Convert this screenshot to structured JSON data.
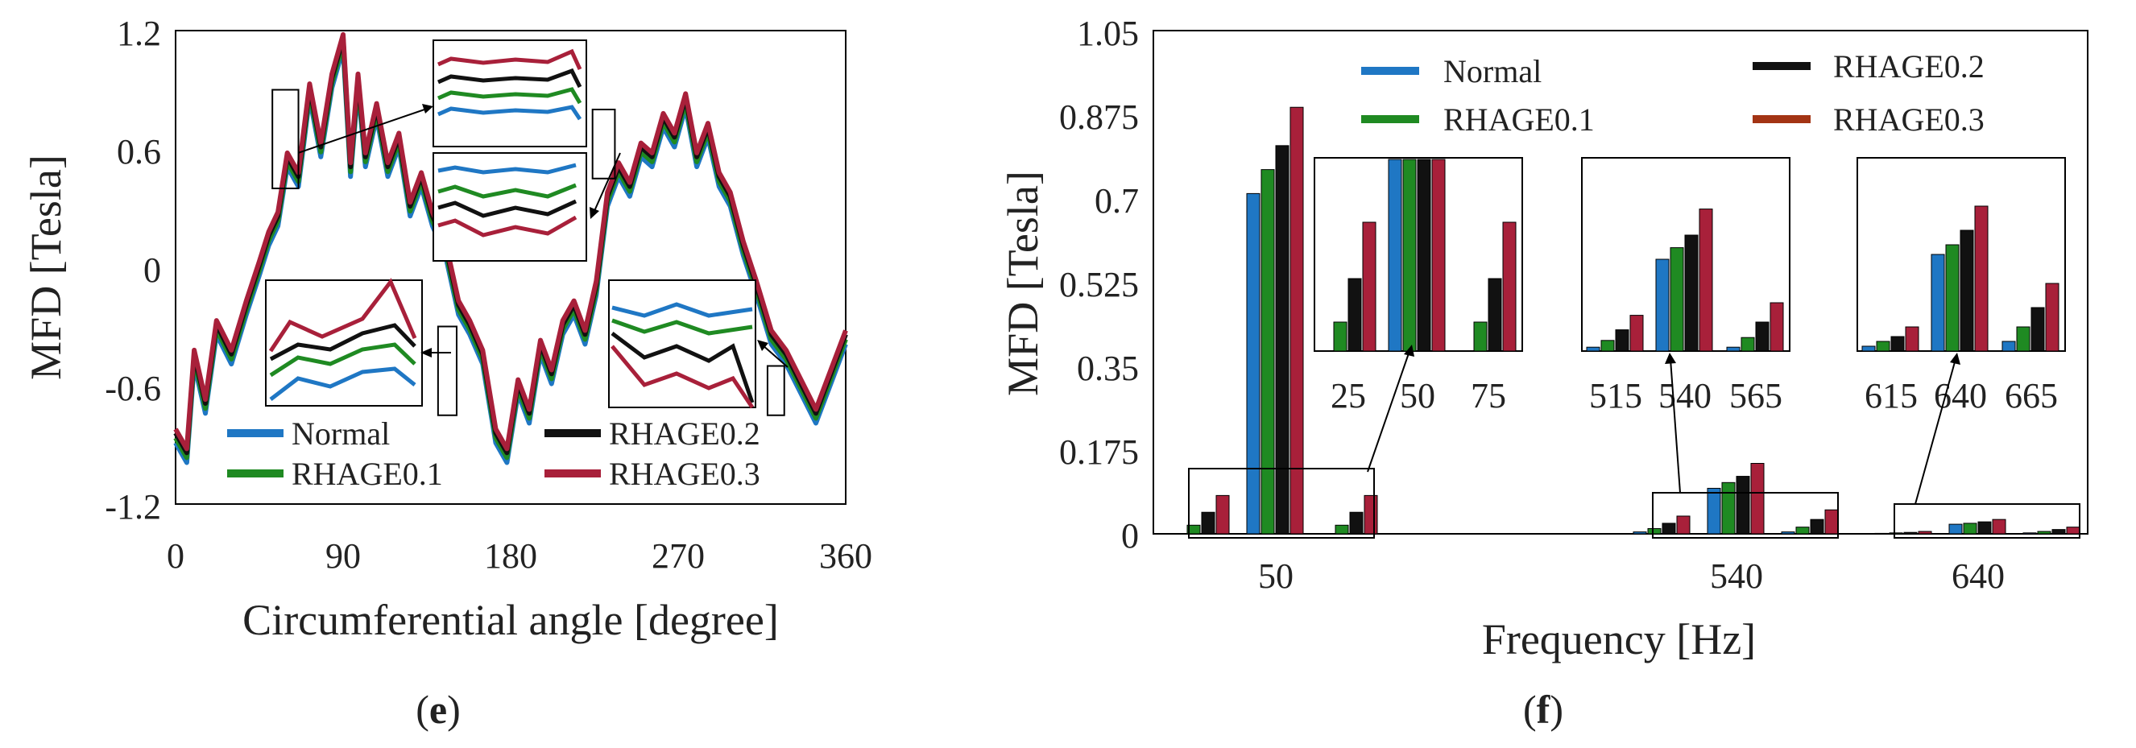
{
  "colors": {
    "normal": "#1f77c4",
    "r01": "#1f8a22",
    "r02": "#111111",
    "r03": "#a8203a",
    "r03_legend_f": "#a33414"
  },
  "chart_data": [
    {
      "id": "e",
      "type": "line",
      "panel_label": "e",
      "xlabel": "Circumferential angle [degree]",
      "ylabel": "MFD [Tesla]",
      "xlim": [
        0,
        360
      ],
      "ylim": [
        -1.2,
        1.2
      ],
      "xticks": [
        "0",
        "90",
        "180",
        "270",
        "360"
      ],
      "xtick_values": [
        0,
        90,
        180,
        270,
        360
      ],
      "yticks": [
        "1.2",
        "0.6",
        "0",
        "-0.6",
        "-1.2"
      ],
      "ytick_values": [
        1.2,
        0.6,
        0,
        -0.6,
        -1.2
      ],
      "grid": false,
      "legend_position": "bottom-center",
      "legend": [
        "Normal",
        "RHAGE0.1",
        "RHAGE0.2",
        "RHAGE0.3"
      ],
      "envelope": {
        "x": [
          0,
          6,
          10,
          16,
          22,
          30,
          38,
          45,
          50,
          55,
          60,
          66,
          72,
          78,
          84,
          90,
          94,
          98,
          102,
          108,
          114,
          120,
          126,
          132,
          138,
          145,
          152,
          158,
          165,
          172,
          178,
          184,
          190,
          196,
          202,
          208,
          214,
          220,
          226,
          232,
          238,
          244,
          250,
          256,
          262,
          268,
          274,
          280,
          286,
          292,
          298,
          305,
          312,
          320,
          328,
          336,
          344,
          352,
          360
        ],
        "y": [
          -0.85,
          -0.95,
          -0.45,
          -0.7,
          -0.3,
          -0.45,
          -0.2,
          0.0,
          0.15,
          0.25,
          0.55,
          0.45,
          0.9,
          0.6,
          0.95,
          1.15,
          0.5,
          0.95,
          0.55,
          0.8,
          0.5,
          0.65,
          0.3,
          0.45,
          0.25,
          0.1,
          -0.2,
          -0.3,
          -0.45,
          -0.85,
          -0.95,
          -0.6,
          -0.75,
          -0.4,
          -0.55,
          -0.3,
          -0.2,
          -0.35,
          -0.1,
          0.35,
          0.5,
          0.4,
          0.6,
          0.55,
          0.75,
          0.65,
          0.85,
          0.55,
          0.7,
          0.45,
          0.35,
          0.1,
          -0.1,
          -0.35,
          -0.45,
          -0.6,
          -0.75,
          -0.55,
          -0.35
        ]
      },
      "series": [
        {
          "name": "Normal",
          "offset": -0.04
        },
        {
          "name": "RHAGE0.1",
          "offset": -0.015
        },
        {
          "name": "RHAGE0.2",
          "offset": 0.01
        },
        {
          "name": "RHAGE0.3",
          "offset": 0.03
        }
      ],
      "highlight_regions": [
        {
          "x": [
            52,
            66
          ],
          "y": [
            0.4,
            0.9
          ]
        },
        {
          "x": [
            224,
            236
          ],
          "y": [
            0.45,
            0.8
          ]
        },
        {
          "x": [
            141,
            151
          ],
          "y": [
            -0.75,
            -0.3
          ]
        },
        {
          "x": [
            318,
            327
          ],
          "y": [
            -0.75,
            -0.5
          ]
        }
      ]
    },
    {
      "id": "f",
      "type": "bar",
      "panel_label": "f",
      "xlabel": "Frequency [Hz]",
      "ylabel": "MFD [Tesla]",
      "ylim": [
        0,
        1.05
      ],
      "yticks": [
        "1.05",
        "0.875",
        "0.7",
        "0.525",
        "0.35",
        "0.175",
        "0"
      ],
      "ytick_values": [
        1.05,
        0.875,
        0.7,
        0.525,
        0.35,
        0.175,
        0
      ],
      "categories": [
        "50",
        "540",
        "640"
      ],
      "grid": false,
      "legend_position": "top-center",
      "legend": [
        "Normal",
        "RHAGE0.1",
        "RHAGE0.2",
        "RHAGE0.3"
      ],
      "series": [
        {
          "name": "Normal",
          "values": [
            0.71,
            0.095,
            0.02
          ]
        },
        {
          "name": "RHAGE0.1",
          "values": [
            0.76,
            0.107,
            0.022
          ]
        },
        {
          "name": "RHAGE0.2",
          "values": [
            0.81,
            0.12,
            0.025
          ]
        },
        {
          "name": "RHAGE0.3",
          "values": [
            0.89,
            0.147,
            0.03
          ]
        }
      ],
      "sidebands": [
        {
          "freq": "25",
          "values": [
            0.0,
            0.018,
            0.045,
            0.08
          ]
        },
        {
          "freq": "75",
          "values": [
            0.0,
            0.018,
            0.045,
            0.08
          ]
        },
        {
          "freq": "515",
          "values": [
            0.004,
            0.011,
            0.022,
            0.037
          ]
        },
        {
          "freq": "565",
          "values": [
            0.004,
            0.014,
            0.03,
            0.05
          ]
        },
        {
          "freq": "615",
          "values": [
            0.001,
            0.002,
            0.003,
            0.005
          ]
        },
        {
          "freq": "665",
          "values": [
            0.002,
            0.005,
            0.009,
            0.014
          ]
        }
      ],
      "insets": [
        {
          "ticks": [
            "25",
            "50",
            "75"
          ]
        },
        {
          "ticks": [
            "515",
            "540",
            "565"
          ]
        },
        {
          "ticks": [
            "615",
            "640",
            "665"
          ]
        }
      ]
    }
  ]
}
